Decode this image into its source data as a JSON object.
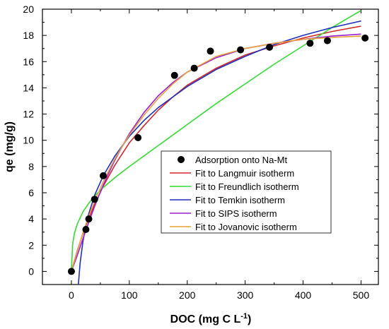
{
  "chart_data": {
    "type": "scatter",
    "xlabel": "DOC (mg C L",
    "xlabel_sup": "-1",
    "xlabel_end": ")",
    "ylabel": "qe (mg/g)",
    "xlim": [
      -50,
      530
    ],
    "ylim": [
      -1,
      20
    ],
    "xticks": [
      0,
      100,
      200,
      300,
      400,
      500
    ],
    "yticks": [
      0,
      2,
      4,
      6,
      8,
      10,
      12,
      14,
      16,
      18,
      20
    ],
    "grid": false,
    "legend_position": "center-right",
    "points": {
      "name": "Adsorption onto Na-Mt",
      "color": "#000000",
      "x": [
        0,
        25,
        30,
        40,
        55,
        115,
        178,
        212,
        240,
        292,
        342,
        412,
        442,
        507
      ],
      "y": [
        0.0,
        3.2,
        4.0,
        5.5,
        7.3,
        10.2,
        14.95,
        15.5,
        16.8,
        16.9,
        17.1,
        17.4,
        17.6,
        17.8
      ]
    },
    "series": [
      {
        "name": "Fit to Langmuir isotherm",
        "color": "#d62728",
        "x": [
          0,
          10,
          20,
          30,
          40,
          55,
          75,
          100,
          125,
          150,
          175,
          200,
          250,
          300,
          350,
          400,
          450,
          500
        ],
        "y": [
          0.0,
          1.55,
          2.9,
          4.05,
          5.1,
          6.5,
          8.1,
          9.8,
          11.1,
          12.3,
          13.3,
          14.2,
          15.5,
          16.5,
          17.2,
          17.8,
          18.3,
          18.7
        ]
      },
      {
        "name": "Fit to Freundlich isotherm",
        "color": "#33dd33",
        "x": [
          0,
          2,
          5,
          10,
          20,
          30,
          40,
          55,
          75,
          100,
          125,
          150,
          175,
          200,
          250,
          300,
          350,
          400,
          450,
          500
        ],
        "y": [
          0.0,
          2.0,
          2.85,
          3.6,
          4.55,
          5.2,
          5.75,
          6.4,
          7.15,
          8.0,
          8.8,
          9.6,
          10.4,
          11.2,
          12.8,
          14.3,
          15.8,
          17.2,
          18.6,
          19.9
        ]
      },
      {
        "name": "Fit to Temkin isotherm",
        "color": "#1f2fbf",
        "x": [
          12,
          15,
          20,
          25,
          30,
          40,
          55,
          75,
          100,
          125,
          150,
          175,
          200,
          250,
          300,
          350,
          400,
          450,
          500
        ],
        "y": [
          -1.0,
          0.6,
          2.3,
          3.5,
          4.4,
          5.8,
          7.3,
          8.8,
          10.3,
          11.5,
          12.5,
          13.3,
          14.1,
          15.4,
          16.4,
          17.3,
          18.0,
          18.6,
          19.1
        ]
      },
      {
        "name": "Fit to SIPS isotherm",
        "color": "#9a1fd6",
        "x": [
          0,
          10,
          20,
          30,
          40,
          55,
          75,
          100,
          125,
          150,
          175,
          200,
          250,
          300,
          350,
          400,
          450,
          500
        ],
        "y": [
          0.0,
          1.2,
          2.5,
          3.75,
          4.95,
          6.6,
          8.5,
          10.5,
          12.1,
          13.4,
          14.4,
          15.2,
          16.3,
          17.0,
          17.4,
          17.7,
          17.95,
          18.1
        ]
      },
      {
        "name": "Fit to Jovanovic isotherm",
        "color": "#e8a13a",
        "x": [
          0,
          10,
          20,
          30,
          40,
          55,
          75,
          100,
          125,
          150,
          175,
          200,
          250,
          300,
          350,
          400,
          450,
          500
        ],
        "y": [
          0.0,
          1.5,
          2.95,
          4.2,
          5.35,
          6.85,
          8.6,
          10.4,
          11.9,
          13.2,
          14.3,
          15.2,
          16.4,
          17.0,
          17.4,
          17.7,
          17.85,
          17.95
        ]
      }
    ]
  }
}
